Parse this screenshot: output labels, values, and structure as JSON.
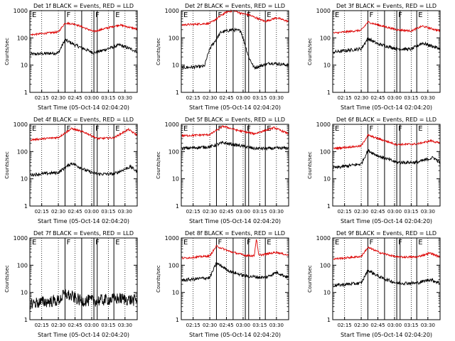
{
  "figure": {
    "colors": {
      "events": "#000000",
      "lld": "#dd0000",
      "axis": "#000000",
      "background": "#ffffff"
    }
  },
  "chart_data": [
    {
      "type": "line",
      "title": "Det 1f BLACK = Events, RED = LLD",
      "xlabel": "Start Time (05-Oct-14 02:04:20)",
      "ylabel": "Counts/sec",
      "y_scale": "log",
      "ylim": [
        1,
        1000
      ],
      "y_ticks": [
        "1",
        "10",
        "100",
        "1000"
      ],
      "xlim": [
        "02:04:20",
        "03:41:00"
      ],
      "x_ticks": [
        "02:15",
        "02:30",
        "02:45",
        "03:00",
        "03:15",
        "03:30"
      ],
      "markers": [
        {
          "time": "02:05",
          "label": "E"
        },
        {
          "time": "02:36",
          "label": "F"
        },
        {
          "time": "02:51",
          "label": ""
        },
        {
          "time": "03:02",
          "label": "F"
        },
        {
          "time": "03:05",
          "label": ""
        },
        {
          "time": "03:20",
          "label": "E"
        }
      ],
      "series": [
        {
          "name": "Events",
          "color": "#000000",
          "x": [
            "02:05",
            "02:30",
            "02:36",
            "02:45",
            "03:02",
            "03:10",
            "03:25",
            "03:41"
          ],
          "y": [
            25,
            28,
            85,
            55,
            28,
            35,
            55,
            32
          ]
        },
        {
          "name": "LLD",
          "color": "#dd0000",
          "x": [
            "02:05",
            "02:30",
            "02:36",
            "02:45",
            "03:02",
            "03:10",
            "03:25",
            "03:41"
          ],
          "y": [
            130,
            165,
            350,
            320,
            170,
            210,
            300,
            210
          ]
        }
      ]
    },
    {
      "type": "line",
      "title": "Det 2f BLACK = Events, RED = LLD",
      "xlabel": "Start Time (05-Oct-14 02:04:20)",
      "ylabel": "Counts/sec",
      "y_scale": "log",
      "ylim": [
        1,
        1000
      ],
      "y_ticks": [
        "1",
        "10",
        "100",
        "1000"
      ],
      "xlim": [
        "02:04:20",
        "03:41:00"
      ],
      "x_ticks": [
        "02:15",
        "02:30",
        "02:45",
        "03:00",
        "03:15",
        "03:30"
      ],
      "markers": [
        {
          "time": "02:05",
          "label": "E"
        },
        {
          "time": "02:36",
          "label": "F"
        },
        {
          "time": "02:51",
          "label": ""
        },
        {
          "time": "03:02",
          "label": "F"
        },
        {
          "time": "03:05",
          "label": ""
        },
        {
          "time": "03:20",
          "label": "E"
        }
      ],
      "series": [
        {
          "name": "Events",
          "color": "#000000",
          "x": [
            "02:05",
            "02:25",
            "02:30",
            "02:40",
            "02:50",
            "02:58",
            "03:05",
            "03:10",
            "03:25",
            "03:41"
          ],
          "y": [
            8,
            9,
            40,
            160,
            200,
            180,
            20,
            8,
            12,
            10
          ]
        },
        {
          "name": "LLD",
          "color": "#dd0000",
          "x": [
            "02:05",
            "02:30",
            "02:45",
            "02:52",
            "02:58",
            "03:05",
            "03:20",
            "03:30",
            "03:41"
          ],
          "y": [
            300,
            340,
            900,
            1000,
            800,
            700,
            400,
            550,
            400
          ]
        }
      ]
    },
    {
      "type": "line",
      "title": "Det 3f BLACK = Events, RED = LLD",
      "xlabel": "Start Time (05-Oct-14 02:04:20)",
      "ylabel": "Counts/sec",
      "y_scale": "log",
      "ylim": [
        1,
        1000
      ],
      "y_ticks": [
        "1",
        "10",
        "100",
        "1000"
      ],
      "xlim": [
        "02:04:20",
        "03:41:00"
      ],
      "x_ticks": [
        "02:15",
        "02:30",
        "02:45",
        "03:00",
        "03:15",
        "03:30"
      ],
      "markers": [
        {
          "time": "02:05",
          "label": "E"
        },
        {
          "time": "02:36",
          "label": "F"
        },
        {
          "time": "02:51",
          "label": ""
        },
        {
          "time": "03:02",
          "label": "F"
        },
        {
          "time": "03:05",
          "label": ""
        },
        {
          "time": "03:20",
          "label": "E"
        }
      ],
      "series": [
        {
          "name": "Events",
          "color": "#000000",
          "x": [
            "02:05",
            "02:30",
            "02:36",
            "02:45",
            "03:02",
            "03:15",
            "03:25",
            "03:41"
          ],
          "y": [
            30,
            40,
            95,
            60,
            40,
            38,
            65,
            40
          ]
        },
        {
          "name": "LLD",
          "color": "#dd0000",
          "x": [
            "02:05",
            "02:30",
            "02:36",
            "02:45",
            "03:02",
            "03:15",
            "03:25",
            "03:41"
          ],
          "y": [
            150,
            190,
            380,
            300,
            200,
            180,
            270,
            180
          ]
        }
      ]
    },
    {
      "type": "line",
      "title": "Det 4f BLACK = Events, RED = LLD",
      "xlabel": "Start Time (05-Oct-14 02:04:20)",
      "ylabel": "Counts/sec",
      "y_scale": "log",
      "ylim": [
        1,
        1000
      ],
      "y_ticks": [
        "1",
        "10",
        "100",
        "1000"
      ],
      "xlim": [
        "02:04:20",
        "03:41:00"
      ],
      "x_ticks": [
        "02:15",
        "02:30",
        "02:45",
        "03:00",
        "03:15",
        "03:30"
      ],
      "markers": [
        {
          "time": "02:05",
          "label": "E"
        },
        {
          "time": "02:36",
          "label": "F"
        },
        {
          "time": "02:51",
          "label": ""
        },
        {
          "time": "03:02",
          "label": "F"
        },
        {
          "time": "03:05",
          "label": ""
        },
        {
          "time": "03:20",
          "label": "E"
        }
      ],
      "series": [
        {
          "name": "Events",
          "color": "#000000",
          "x": [
            "02:05",
            "02:30",
            "02:42",
            "02:55",
            "03:05",
            "03:20",
            "03:35",
            "03:41"
          ],
          "y": [
            14,
            17,
            38,
            20,
            15,
            15,
            28,
            18
          ]
        },
        {
          "name": "LLD",
          "color": "#dd0000",
          "x": [
            "02:05",
            "02:30",
            "02:42",
            "02:55",
            "03:05",
            "03:20",
            "03:33",
            "03:41"
          ],
          "y": [
            270,
            330,
            700,
            480,
            300,
            320,
            650,
            400
          ]
        }
      ]
    },
    {
      "type": "line",
      "title": "Det 5f BLACK = Events, RED = LLD",
      "xlabel": "Start Time (05-Oct-14 02:04:20)",
      "ylabel": "Counts/sec",
      "y_scale": "log",
      "ylim": [
        1,
        1000
      ],
      "y_ticks": [
        "1",
        "10",
        "100",
        "1000"
      ],
      "xlim": [
        "02:04:20",
        "03:41:00"
      ],
      "x_ticks": [
        "02:15",
        "02:30",
        "02:45",
        "03:00",
        "03:15",
        "03:30"
      ],
      "markers": [
        {
          "time": "02:05",
          "label": "E"
        },
        {
          "time": "02:36",
          "label": "F"
        },
        {
          "time": "02:51",
          "label": ""
        },
        {
          "time": "03:02",
          "label": "F"
        },
        {
          "time": "03:05",
          "label": ""
        },
        {
          "time": "03:20",
          "label": "E"
        }
      ],
      "series": [
        {
          "name": "Events",
          "color": "#000000",
          "x": [
            "02:05",
            "02:30",
            "02:42",
            "02:55",
            "03:10",
            "03:25",
            "03:41"
          ],
          "y": [
            130,
            150,
            210,
            170,
            130,
            130,
            135
          ]
        },
        {
          "name": "LLD",
          "color": "#dd0000",
          "x": [
            "02:05",
            "02:30",
            "02:42",
            "02:55",
            "03:10",
            "03:28",
            "03:41"
          ],
          "y": [
            380,
            420,
            850,
            600,
            450,
            750,
            450
          ]
        }
      ]
    },
    {
      "type": "line",
      "title": "Det 6f BLACK = Events, RED = LLD",
      "xlabel": "Start Time (05-Oct-14 02:04:20)",
      "ylabel": "Counts/sec",
      "y_scale": "log",
      "ylim": [
        1,
        1000
      ],
      "y_ticks": [
        "1",
        "10",
        "100",
        "1000"
      ],
      "xlim": [
        "02:04:20",
        "03:41:00"
      ],
      "x_ticks": [
        "02:15",
        "02:30",
        "02:45",
        "03:00",
        "03:15",
        "03:30"
      ],
      "markers": [
        {
          "time": "02:05",
          "label": "E"
        },
        {
          "time": "02:36",
          "label": "F"
        },
        {
          "time": "02:51",
          "label": ""
        },
        {
          "time": "03:02",
          "label": "F"
        },
        {
          "time": "03:05",
          "label": ""
        },
        {
          "time": "03:20",
          "label": "E"
        }
      ],
      "series": [
        {
          "name": "Events",
          "color": "#000000",
          "x": [
            "02:05",
            "02:30",
            "02:36",
            "02:45",
            "03:02",
            "03:20",
            "03:35",
            "03:41"
          ],
          "y": [
            25,
            35,
            110,
            70,
            40,
            40,
            60,
            40
          ]
        },
        {
          "name": "LLD",
          "color": "#dd0000",
          "x": [
            "02:05",
            "02:30",
            "02:36",
            "02:45",
            "03:02",
            "03:20",
            "03:33",
            "03:41"
          ],
          "y": [
            130,
            160,
            400,
            300,
            180,
            190,
            250,
            200
          ]
        }
      ]
    },
    {
      "type": "line",
      "title": "Det 7f BLACK = Events, RED = LLD",
      "xlabel": "Start Time (05-Oct-14 02:04:20)",
      "ylabel": "Counts/sec",
      "y_scale": "log",
      "ylim": [
        1,
        1000
      ],
      "y_ticks": [
        "1",
        "10",
        "100",
        "1000"
      ],
      "xlim": [
        "02:04:20",
        "03:41:00"
      ],
      "x_ticks": [
        "02:15",
        "02:30",
        "02:45",
        "03:00",
        "03:15",
        "03:30"
      ],
      "markers": [
        {
          "time": "02:05",
          "label": "E"
        },
        {
          "time": "02:36",
          "label": "F"
        },
        {
          "time": "02:51",
          "label": ""
        },
        {
          "time": "03:02",
          "label": "F"
        },
        {
          "time": "03:05",
          "label": ""
        },
        {
          "time": "03:20",
          "label": "E"
        }
      ],
      "series": [
        {
          "name": "Events",
          "color": "#000000",
          "x": [
            "02:05",
            "02:30",
            "02:36",
            "02:50",
            "03:05",
            "03:25",
            "03:41"
          ],
          "y": [
            4,
            5,
            9,
            5,
            5,
            6,
            5
          ]
        }
      ]
    },
    {
      "type": "line",
      "title": "Det 8f BLACK = Events, RED = LLD",
      "xlabel": "Start Time (05-Oct-14 02:04:20)",
      "ylabel": "Counts/sec",
      "y_scale": "log",
      "ylim": [
        1,
        1000
      ],
      "y_ticks": [
        "1",
        "10",
        "100",
        "1000"
      ],
      "xlim": [
        "02:04:20",
        "03:41:00"
      ],
      "x_ticks": [
        "02:15",
        "02:30",
        "02:45",
        "03:00",
        "03:15",
        "03:30"
      ],
      "markers": [
        {
          "time": "02:05",
          "label": "E"
        },
        {
          "time": "02:36",
          "label": "F"
        },
        {
          "time": "02:51",
          "label": ""
        },
        {
          "time": "03:02",
          "label": "F"
        },
        {
          "time": "03:05",
          "label": ""
        },
        {
          "time": "03:20",
          "label": "E"
        }
      ],
      "series": [
        {
          "name": "Events",
          "color": "#000000",
          "x": [
            "02:05",
            "02:30",
            "02:36",
            "02:48",
            "03:02",
            "03:20",
            "03:30",
            "03:41"
          ],
          "y": [
            28,
            35,
            120,
            60,
            40,
            35,
            55,
            35
          ]
        },
        {
          "name": "LLD",
          "color": "#dd0000",
          "x": [
            "02:05",
            "02:30",
            "02:36",
            "02:48",
            "03:02",
            "03:10",
            "03:12",
            "03:14",
            "03:30",
            "03:41"
          ],
          "y": [
            180,
            220,
            500,
            320,
            230,
            220,
            1000,
            230,
            300,
            230
          ]
        }
      ]
    },
    {
      "type": "line",
      "title": "Det 9f BLACK = Events, RED = LLD",
      "xlabel": "Start Time (05-Oct-14 02:04:20)",
      "ylabel": "Counts/sec",
      "y_scale": "log",
      "ylim": [
        1,
        1000
      ],
      "y_ticks": [
        "1",
        "10",
        "100",
        "1000"
      ],
      "xlim": [
        "02:04:20",
        "03:41:00"
      ],
      "x_ticks": [
        "02:15",
        "02:30",
        "02:45",
        "03:00",
        "03:15",
        "03:30"
      ],
      "markers": [
        {
          "time": "02:05",
          "label": "E"
        },
        {
          "time": "02:36",
          "label": "F"
        },
        {
          "time": "02:51",
          "label": ""
        },
        {
          "time": "03:02",
          "label": "F"
        },
        {
          "time": "03:05",
          "label": ""
        },
        {
          "time": "03:20",
          "label": "E"
        }
      ],
      "series": [
        {
          "name": "Events",
          "color": "#000000",
          "x": [
            "02:05",
            "02:30",
            "02:36",
            "02:48",
            "03:02",
            "03:20",
            "03:32",
            "03:41"
          ],
          "y": [
            18,
            22,
            65,
            35,
            22,
            22,
            30,
            22
          ]
        },
        {
          "name": "LLD",
          "color": "#dd0000",
          "x": [
            "02:05",
            "02:30",
            "02:36",
            "02:48",
            "03:02",
            "03:20",
            "03:32",
            "03:41"
          ],
          "y": [
            170,
            210,
            450,
            280,
            200,
            200,
            280,
            200
          ]
        }
      ]
    }
  ]
}
